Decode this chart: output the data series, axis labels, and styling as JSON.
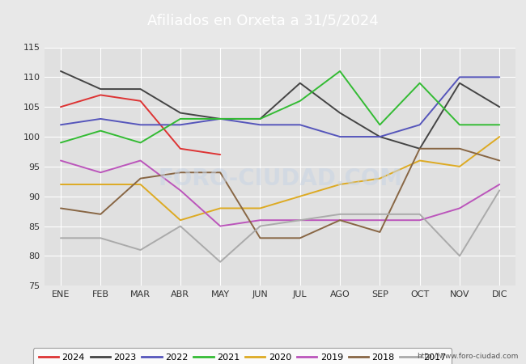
{
  "title": "Afiliados en Orxeta a 31/5/2024",
  "header_bg": "#5599cc",
  "months": [
    "ENE",
    "FEB",
    "MAR",
    "ABR",
    "MAY",
    "JUN",
    "JUL",
    "AGO",
    "SEP",
    "OCT",
    "NOV",
    "DIC"
  ],
  "series": {
    "2024": {
      "color": "#dd3333",
      "data": [
        105,
        107,
        106,
        98,
        97,
        null,
        null,
        null,
        null,
        null,
        null,
        null
      ]
    },
    "2023": {
      "color": "#444444",
      "data": [
        111,
        108,
        108,
        104,
        103,
        103,
        109,
        104,
        100,
        98,
        109,
        105
      ]
    },
    "2022": {
      "color": "#5555bb",
      "data": [
        102,
        103,
        102,
        102,
        103,
        102,
        102,
        100,
        100,
        102,
        110,
        110
      ]
    },
    "2021": {
      "color": "#33bb33",
      "data": [
        99,
        101,
        99,
        103,
        103,
        103,
        106,
        111,
        102,
        109,
        102,
        102
      ]
    },
    "2020": {
      "color": "#ddaa22",
      "data": [
        92,
        92,
        92,
        86,
        88,
        88,
        90,
        92,
        93,
        96,
        95,
        100
      ]
    },
    "2019": {
      "color": "#bb55bb",
      "data": [
        96,
        94,
        96,
        91,
        85,
        86,
        86,
        86,
        86,
        86,
        88,
        92
      ]
    },
    "2018": {
      "color": "#886644",
      "data": [
        88,
        87,
        93,
        94,
        94,
        83,
        83,
        86,
        84,
        98,
        98,
        96
      ]
    },
    "2017": {
      "color": "#aaaaaa",
      "data": [
        83,
        83,
        81,
        85,
        79,
        85,
        null,
        87,
        87,
        87,
        80,
        91
      ]
    }
  },
  "ylim": [
    75,
    115
  ],
  "yticks": [
    75,
    80,
    85,
    90,
    95,
    100,
    105,
    110,
    115
  ],
  "footer_text": "http://www.foro-ciudad.com",
  "bg_color": "#e8e8e8",
  "plot_bg": "#e0e0e0",
  "grid_color": "#ffffff",
  "legend_years": [
    "2024",
    "2023",
    "2022",
    "2021",
    "2020",
    "2019",
    "2018",
    "2017"
  ]
}
